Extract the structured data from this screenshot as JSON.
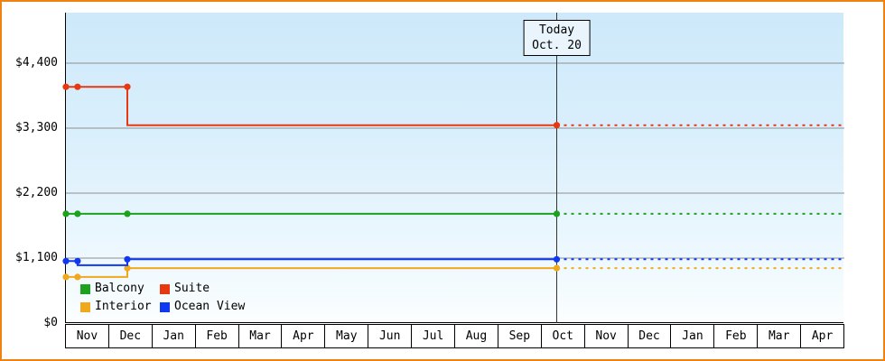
{
  "chart_data": {
    "type": "line",
    "x_axis": {
      "months": [
        "Nov",
        "Dec",
        "Jan",
        "Feb",
        "Mar",
        "Apr",
        "May",
        "Jun",
        "Jul",
        "Aug",
        "Sep",
        "Oct",
        "Nov",
        "Dec",
        "Jan",
        "Feb",
        "Mar",
        "Apr"
      ]
    },
    "y_axis": {
      "max": 4400,
      "ticks": [
        {
          "value": 0,
          "label": "$0"
        },
        {
          "value": 1100,
          "label": "$1,100"
        },
        {
          "value": 2200,
          "label": "$2,200"
        },
        {
          "value": 3300,
          "label": "$3,300"
        },
        {
          "value": 4400,
          "label": "$4,400"
        }
      ]
    },
    "today": {
      "t": 11.35,
      "line1": "Today",
      "line2": "Oct. 20"
    },
    "series": [
      {
        "id": "suite",
        "name": "Suite",
        "color": "#e83811",
        "path": [
          [
            0,
            4000
          ],
          [
            1.42,
            4000
          ],
          [
            1.42,
            3350
          ],
          [
            11.35,
            3350
          ]
        ],
        "markers": [
          [
            0,
            4000
          ],
          [
            0.27,
            4000
          ],
          [
            1.42,
            4000
          ],
          [
            11.35,
            3350
          ]
        ],
        "future_value": 3350
      },
      {
        "id": "balcony",
        "name": "Balcony",
        "color": "#1ca21c",
        "path": [
          [
            0,
            1850
          ],
          [
            11.35,
            1850
          ]
        ],
        "markers": [
          [
            0,
            1850
          ],
          [
            0.27,
            1850
          ],
          [
            1.42,
            1850
          ],
          [
            11.35,
            1850
          ]
        ],
        "future_value": 1850
      },
      {
        "id": "interior",
        "name": "Interior",
        "color": "#f0a81c",
        "path": [
          [
            0,
            780
          ],
          [
            1.42,
            780
          ],
          [
            1.42,
            930
          ],
          [
            11.35,
            930
          ]
        ],
        "markers": [
          [
            0,
            780
          ],
          [
            0.27,
            780
          ],
          [
            1.42,
            930
          ],
          [
            11.35,
            930
          ]
        ],
        "future_value": 930
      },
      {
        "id": "ocean-view",
        "name": "Ocean View",
        "color": "#1038f0",
        "path": [
          [
            0,
            1050
          ],
          [
            0.27,
            1050
          ],
          [
            0.27,
            980
          ],
          [
            1.42,
            980
          ],
          [
            1.42,
            1080
          ],
          [
            11.35,
            1080
          ]
        ],
        "markers": [
          [
            0,
            1050
          ],
          [
            0.27,
            1050
          ],
          [
            1.42,
            1080
          ],
          [
            11.35,
            1080
          ]
        ],
        "future_value": 1080
      }
    ],
    "legend": [
      {
        "label": "Balcony",
        "color": "#1ca21c"
      },
      {
        "label": "Suite",
        "color": "#e83811"
      },
      {
        "label": "Interior",
        "color": "#f0a81c"
      },
      {
        "label": "Ocean View",
        "color": "#1038f0"
      }
    ],
    "colors": {
      "frame_border": "#f08210",
      "grid": "#8f8f8f",
      "axis": "#000000",
      "today_line": "#333333",
      "plot_bg_top": "#cde9fa",
      "plot_bg_bottom": "#fbfeff"
    }
  }
}
